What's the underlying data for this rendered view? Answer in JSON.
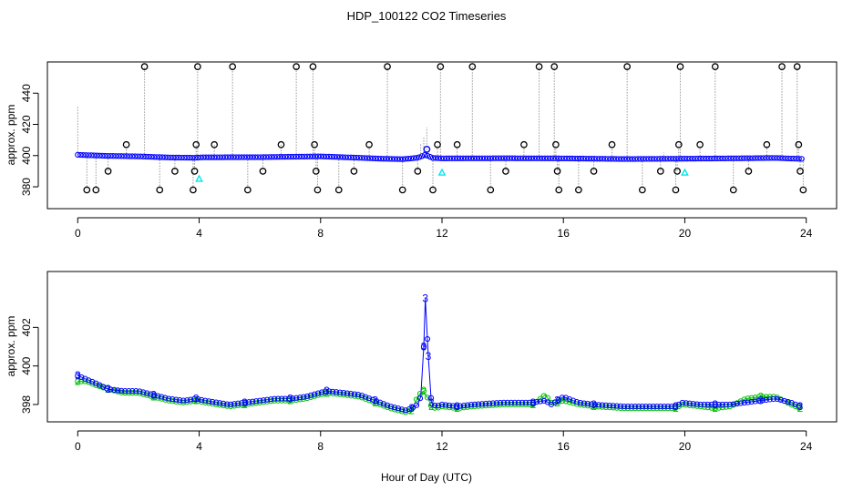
{
  "title": "HDP_100122  CO2 Timeseries",
  "xlabel": "Hour of Day (UTC)",
  "colors": {
    "primary": "#0000ff",
    "secondary": "#00c000",
    "outlier": "#000000",
    "highlight": "#00e5ee",
    "trace": "#9a9a9a"
  },
  "chart_data": [
    {
      "type": "scatter",
      "panel": "top",
      "ylabel": "approx. ppm",
      "xlim": [
        -1,
        25
      ],
      "ylim": [
        366,
        460
      ],
      "xticks": [
        0,
        4,
        8,
        12,
        16,
        20,
        24
      ],
      "yticks": [
        380,
        400,
        420,
        440
      ],
      "series": [
        {
          "role": "main",
          "color": "#0000ff",
          "marker": "circle",
          "baseline": [
            [
              0.0,
              400.5
            ],
            [
              1.0,
              399.8
            ],
            [
              2.0,
              399.5
            ],
            [
              3.0,
              398.8
            ],
            [
              3.9,
              398.6
            ],
            [
              4.1,
              398.9
            ],
            [
              6.0,
              399.0
            ],
            [
              8.0,
              399.5
            ],
            [
              9.0,
              398.8
            ],
            [
              10.0,
              398.0
            ],
            [
              10.7,
              397.7
            ],
            [
              11.2,
              398.6
            ],
            [
              11.45,
              400.5
            ],
            [
              11.7,
              398.5
            ],
            [
              12.0,
              398.2
            ],
            [
              14.0,
              398.3
            ],
            [
              16.0,
              398.2
            ],
            [
              18.0,
              397.8
            ],
            [
              20.0,
              398.0
            ],
            [
              22.0,
              398.3
            ],
            [
              23.0,
              398.5
            ],
            [
              23.8,
              397.9
            ]
          ]
        },
        {
          "role": "outliers",
          "color": "#000000",
          "marker": "circle",
          "points": [
            [
              0.3,
              378
            ],
            [
              0.6,
              378
            ],
            [
              1.0,
              390
            ],
            [
              1.6,
              407
            ],
            [
              2.2,
              457
            ],
            [
              2.7,
              378
            ],
            [
              3.2,
              390
            ],
            [
              3.8,
              378
            ],
            [
              3.85,
              390
            ],
            [
              3.9,
              407
            ],
            [
              3.95,
              457
            ],
            [
              4.5,
              407
            ],
            [
              5.1,
              457
            ],
            [
              5.6,
              378
            ],
            [
              6.1,
              390
            ],
            [
              6.7,
              407
            ],
            [
              7.2,
              457
            ],
            [
              7.75,
              457
            ],
            [
              7.8,
              407
            ],
            [
              7.85,
              390
            ],
            [
              7.9,
              378
            ],
            [
              8.6,
              378
            ],
            [
              9.1,
              390
            ],
            [
              9.6,
              407
            ],
            [
              10.2,
              457
            ],
            [
              10.7,
              378
            ],
            [
              11.2,
              390
            ],
            [
              11.7,
              378
            ],
            [
              11.85,
              407
            ],
            [
              11.95,
              457
            ],
            [
              12.5,
              407
            ],
            [
              13.0,
              457
            ],
            [
              13.6,
              378
            ],
            [
              14.1,
              390
            ],
            [
              14.7,
              407
            ],
            [
              15.2,
              457
            ],
            [
              15.7,
              457
            ],
            [
              15.75,
              407
            ],
            [
              15.8,
              390
            ],
            [
              15.85,
              378
            ],
            [
              16.5,
              378
            ],
            [
              17.0,
              390
            ],
            [
              17.6,
              407
            ],
            [
              18.1,
              457
            ],
            [
              18.6,
              378
            ],
            [
              19.2,
              390
            ],
            [
              19.7,
              378
            ],
            [
              19.75,
              390
            ],
            [
              19.8,
              407
            ],
            [
              19.85,
              457
            ],
            [
              20.5,
              407
            ],
            [
              21.0,
              457
            ],
            [
              21.6,
              378
            ],
            [
              22.1,
              390
            ],
            [
              22.7,
              407
            ],
            [
              23.2,
              457
            ],
            [
              23.7,
              457
            ],
            [
              23.75,
              407
            ],
            [
              23.8,
              390
            ],
            [
              23.9,
              378
            ]
          ]
        },
        {
          "role": "highlighted",
          "color": "#00e5ee",
          "marker": "triangle",
          "points": [
            [
              4.0,
              385
            ],
            [
              12.0,
              389
            ],
            [
              20.0,
              389
            ]
          ]
        },
        {
          "role": "spike",
          "color": "#0000ff",
          "marker": "circle",
          "points": [
            [
              11.5,
              404
            ]
          ]
        }
      ]
    },
    {
      "type": "line",
      "panel": "bottom",
      "ylabel": "approx. ppm",
      "xlim": [
        -1,
        25
      ],
      "ylim": [
        397.1,
        404.9
      ],
      "xticks": [
        0,
        4,
        8,
        12,
        16,
        20,
        24
      ],
      "yticks": [
        398,
        400,
        402
      ],
      "series": [
        {
          "label": "3",
          "color": "#0000ff",
          "points": [
            [
              0.0,
              399.5
            ],
            [
              0.3,
              399.3
            ],
            [
              0.6,
              399.1
            ],
            [
              1.0,
              398.8
            ],
            [
              1.5,
              398.7
            ],
            [
              2.0,
              398.7
            ],
            [
              2.5,
              398.5
            ],
            [
              3.0,
              398.3
            ],
            [
              3.5,
              398.2
            ],
            [
              3.9,
              398.3
            ],
            [
              4.2,
              398.2
            ],
            [
              5.0,
              398.0
            ],
            [
              5.5,
              398.1
            ],
            [
              6.0,
              398.2
            ],
            [
              6.5,
              398.3
            ],
            [
              7.0,
              398.3
            ],
            [
              7.5,
              398.4
            ],
            [
              7.95,
              398.6
            ],
            [
              8.2,
              398.7
            ],
            [
              8.8,
              398.6
            ],
            [
              9.3,
              398.5
            ],
            [
              9.8,
              398.2
            ],
            [
              10.3,
              397.9
            ],
            [
              10.8,
              397.7
            ],
            [
              11.0,
              397.8
            ],
            [
              11.2,
              398.0
            ],
            [
              11.3,
              398.4
            ],
            [
              11.4,
              401.0
            ],
            [
              11.45,
              403.5
            ],
            [
              11.55,
              400.5
            ],
            [
              11.65,
              398.1
            ],
            [
              11.8,
              397.9
            ],
            [
              12.0,
              398.0
            ],
            [
              12.5,
              397.9
            ],
            [
              13.0,
              398.0
            ],
            [
              14.0,
              398.1
            ],
            [
              15.0,
              398.1
            ],
            [
              15.4,
              398.2
            ],
            [
              15.6,
              398.0
            ],
            [
              15.8,
              398.2
            ],
            [
              16.0,
              398.4
            ],
            [
              16.5,
              398.1
            ],
            [
              17.0,
              398.0
            ],
            [
              18.0,
              397.9
            ],
            [
              19.0,
              397.9
            ],
            [
              19.7,
              397.9
            ],
            [
              19.9,
              398.1
            ],
            [
              20.5,
              398.0
            ],
            [
              21.0,
              398.0
            ],
            [
              21.5,
              398.0
            ],
            [
              22.0,
              398.1
            ],
            [
              22.5,
              398.2
            ],
            [
              23.0,
              398.3
            ],
            [
              23.5,
              398.1
            ],
            [
              23.8,
              397.9
            ]
          ]
        },
        {
          "label": "2",
          "color": "#00c000",
          "points": [
            [
              0.0,
              399.2
            ],
            [
              0.3,
              399.2
            ],
            [
              0.6,
              399.0
            ],
            [
              1.0,
              398.8
            ],
            [
              1.5,
              398.6
            ],
            [
              2.0,
              398.6
            ],
            [
              2.5,
              398.4
            ],
            [
              3.0,
              398.2
            ],
            [
              3.5,
              398.1
            ],
            [
              3.9,
              398.2
            ],
            [
              4.2,
              398.1
            ],
            [
              5.0,
              397.9
            ],
            [
              5.5,
              398.0
            ],
            [
              6.0,
              398.1
            ],
            [
              6.5,
              398.2
            ],
            [
              7.0,
              398.2
            ],
            [
              7.5,
              398.3
            ],
            [
              7.95,
              398.5
            ],
            [
              8.2,
              398.6
            ],
            [
              8.8,
              398.5
            ],
            [
              9.3,
              398.4
            ],
            [
              9.8,
              398.1
            ],
            [
              10.3,
              397.8
            ],
            [
              10.8,
              397.6
            ],
            [
              11.0,
              397.7
            ],
            [
              11.2,
              398.4
            ],
            [
              11.3,
              398.6
            ],
            [
              11.4,
              398.7
            ],
            [
              11.45,
              398.5
            ],
            [
              11.55,
              398.3
            ],
            [
              11.65,
              397.9
            ],
            [
              11.8,
              397.8
            ],
            [
              12.0,
              397.9
            ],
            [
              12.5,
              397.8
            ],
            [
              13.0,
              397.9
            ],
            [
              14.0,
              398.0
            ],
            [
              15.0,
              398.0
            ],
            [
              15.4,
              398.5
            ],
            [
              15.6,
              398.1
            ],
            [
              15.8,
              398.1
            ],
            [
              16.0,
              398.2
            ],
            [
              16.5,
              398.0
            ],
            [
              17.0,
              397.9
            ],
            [
              18.0,
              397.8
            ],
            [
              19.0,
              397.8
            ],
            [
              19.7,
              397.8
            ],
            [
              19.9,
              398.0
            ],
            [
              20.5,
              397.9
            ],
            [
              21.0,
              397.8
            ],
            [
              21.5,
              397.9
            ],
            [
              22.0,
              398.3
            ],
            [
              22.5,
              398.4
            ],
            [
              23.0,
              398.4
            ],
            [
              23.5,
              398.0
            ],
            [
              23.8,
              397.8
            ]
          ]
        }
      ]
    }
  ]
}
